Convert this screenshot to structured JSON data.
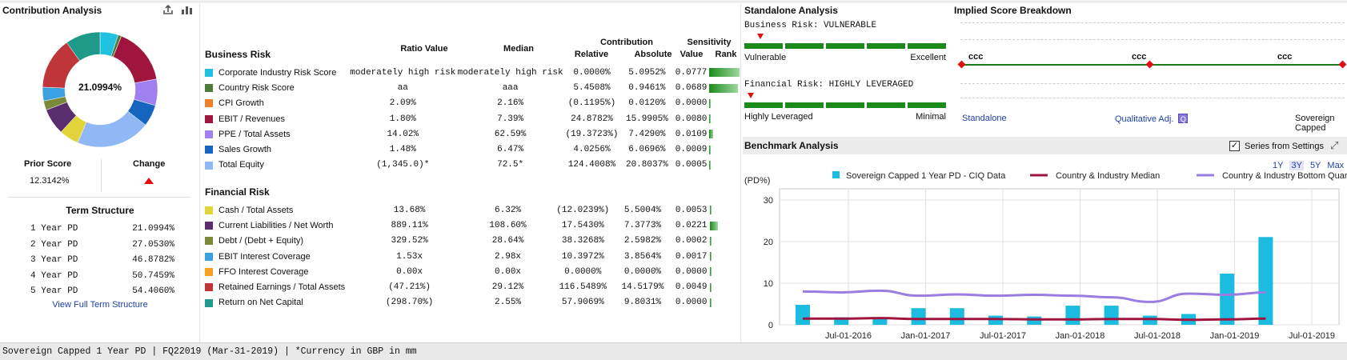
{
  "contribution": {
    "title": "Contribution Analysis",
    "center_value": "21.0994%",
    "prior_score_label": "Prior Score",
    "prior_score_value": "12.3142%",
    "change_label": "Change",
    "term_structure_title": "Term Structure",
    "term_structure": [
      {
        "label": "1 Year PD",
        "value": "21.0994%"
      },
      {
        "label": "2 Year PD",
        "value": "27.0530%"
      },
      {
        "label": "3 Year PD",
        "value": "46.8782%"
      },
      {
        "label": "4 Year PD",
        "value": "50.7459%"
      },
      {
        "label": "5 Year PD",
        "value": "54.4060%"
      }
    ],
    "view_full_link": "View Full Term Structure"
  },
  "ratios": {
    "headers": {
      "ratio_value": "Ratio Value",
      "median": "Median",
      "contribution": "Contribution",
      "relative": "Relative",
      "absolute": "Absolute",
      "sensitivity": "Sensitivity",
      "value": "Value",
      "rank": "Rank"
    },
    "business_title": "Business Risk",
    "financial_title": "Financial Risk",
    "business_rows": [
      {
        "name": "Corporate Industry Risk Score",
        "color": "#1fc0e0",
        "ratio": "moderately high risk",
        "median": "moderately high risk",
        "relative": "0.0000%",
        "absolute": "5.0952%",
        "value": "0.0777",
        "rank": 1.0
      },
      {
        "name": "Country Risk Score",
        "color": "#4e7a3b",
        "ratio": "aa",
        "median": "aaa",
        "relative": "5.4508%",
        "absolute": "0.9461%",
        "value": "0.0689",
        "rank": 0.95
      },
      {
        "name": "CPI Growth",
        "color": "#f07f2a",
        "ratio": "2.09%",
        "median": "2.16%",
        "relative": "(0.1195%)",
        "absolute": "0.0120%",
        "value": "0.0000",
        "rank": 0.02
      },
      {
        "name": "EBIT / Revenues",
        "color": "#a0153e",
        "ratio": "1.80%",
        "median": "7.39%",
        "relative": "24.8782%",
        "absolute": "15.9905%",
        "value": "0.0080",
        "rank": 0.05
      },
      {
        "name": "PPE / Total Assets",
        "color": "#a07ff0",
        "ratio": "14.02%",
        "median": "62.59%",
        "relative": "(19.3723%)",
        "absolute": "7.4290%",
        "value": "0.0109",
        "rank": 0.12
      },
      {
        "name": "Sales Growth",
        "color": "#1565c0",
        "ratio": "1.48%",
        "median": "6.47%",
        "relative": "4.0256%",
        "absolute": "6.0696%",
        "value": "0.0009",
        "rank": 0.02
      },
      {
        "name": "Total Equity",
        "color": "#8fb8f5",
        "ratio": "(1,345.0)*",
        "median": "72.5*",
        "relative": "124.4008%",
        "absolute": "20.8037%",
        "value": "0.0005",
        "rank": 0.02
      }
    ],
    "financial_rows": [
      {
        "name": "Cash / Total Assets",
        "color": "#e0d43a",
        "ratio": "13.68%",
        "median": "6.32%",
        "relative": "(12.0239%)",
        "absolute": "5.5004%",
        "value": "0.0053",
        "rank": 0.03
      },
      {
        "name": "Current Liabilities / Net Worth",
        "color": "#5a2d6e",
        "ratio": "889.11%",
        "median": "108.60%",
        "relative": "17.5430%",
        "absolute": "7.3773%",
        "value": "0.0221",
        "rank": 0.25
      },
      {
        "name": "Debt / (Debt + Equity)",
        "color": "#7a8a3a",
        "ratio": "329.52%",
        "median": "28.64%",
        "relative": "38.3268%",
        "absolute": "2.5982%",
        "value": "0.0002",
        "rank": 0.02
      },
      {
        "name": "EBIT Interest Coverage",
        "color": "#3aa0e0",
        "ratio": "1.53x",
        "median": "2.98x",
        "relative": "10.3972%",
        "absolute": "3.8564%",
        "value": "0.0017",
        "rank": 0.02
      },
      {
        "name": "FFO Interest Coverage",
        "color": "#f5a020",
        "ratio": "0.00x",
        "median": "0.00x",
        "relative": "0.0000%",
        "absolute": "0.0000%",
        "value": "0.0000",
        "rank": 0.02
      },
      {
        "name": "Retained Earnings / Total Assets",
        "color": "#c0353a",
        "ratio": "(47.21%)",
        "median": "29.12%",
        "relative": "116.5489%",
        "absolute": "14.5179%",
        "value": "0.0049",
        "rank": 0.02
      },
      {
        "name": "Return on Net Capital",
        "color": "#1f9a8a",
        "ratio": "(298.70%)",
        "median": "2.55%",
        "relative": "57.9069%",
        "absolute": "9.8031%",
        "value": "0.0000",
        "rank": 0.02
      }
    ]
  },
  "standalone": {
    "title": "Standalone Analysis",
    "business_label": "Business Risk:",
    "business_value": "VULNERABLE",
    "business_low": "Vulnerable",
    "business_high": "Excellent",
    "financial_label": "Financial Risk:",
    "financial_value": "HIGHLY LEVERAGED",
    "financial_low": "Highly Leveraged",
    "financial_high": "Minimal"
  },
  "implied": {
    "title": "Implied Score Breakdown",
    "scores": [
      "ccc",
      "ccc",
      "ccc"
    ],
    "standalone_link": "Standalone",
    "qual_link": "Qualitative Adj.",
    "qual_badge": "Q",
    "capped_label": "Sovereign Capped"
  },
  "benchmark": {
    "title": "Benchmark Analysis",
    "series_toggle_label": "Series from Settings",
    "series_toggle_checked": true,
    "ranges": [
      "1Y",
      "3Y",
      "5Y",
      "Max"
    ],
    "selected_range": "3Y"
  },
  "chart_data": {
    "type": "bar",
    "ylabel": "(PD%)",
    "ylim": [
      0,
      30
    ],
    "yticks": [
      0,
      10,
      20,
      30
    ],
    "grid": true,
    "legend_position": "top",
    "x_ticks": [
      "Jul-01-2016",
      "Jan-01-2017",
      "Jul-01-2017",
      "Jan-01-2018",
      "Jul-01-2018",
      "Jan-01-2019",
      "Jul-01-2019"
    ],
    "series": [
      {
        "name": "Sovereign Capped 1 Year PD - CIQ Data",
        "kind": "bar",
        "color": "#1bbce0",
        "values": [
          4.8,
          1.8,
          1.5,
          4.0,
          4.0,
          2.2,
          2.0,
          4.6,
          4.6,
          2.2,
          2.6,
          12.3,
          21.1
        ]
      },
      {
        "name": "Country & Industry Median",
        "kind": "line",
        "color": "#a0153e",
        "values": [
          1.5,
          1.5,
          1.6,
          1.4,
          1.4,
          1.4,
          1.3,
          1.3,
          1.4,
          1.4,
          1.2,
          1.3,
          1.5
        ]
      },
      {
        "name": "Country & Industry Bottom Quartile",
        "kind": "line",
        "color": "#9a7de0",
        "values": [
          8.0,
          7.8,
          8.2,
          7.0,
          7.3,
          7.0,
          7.2,
          7.0,
          6.6,
          5.5,
          7.5,
          7.2,
          7.8
        ]
      }
    ]
  },
  "footer": "Sovereign Capped 1 Year PD | FQ22019 (Mar-31-2019) | *Currency in GBP in mm"
}
